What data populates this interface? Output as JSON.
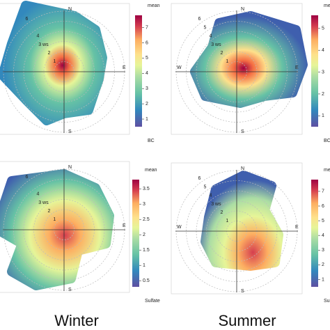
{
  "panels": [
    {
      "compass": {
        "N": "N",
        "E": "E",
        "S": "S"
      },
      "rings": [
        "1",
        "2",
        "3 ws",
        "4",
        "6"
      ],
      "colorbar": {
        "title": "mean",
        "label": "BC",
        "ylim": [
          0.5,
          7.8
        ],
        "yticks": [
          1,
          2,
          3,
          4,
          5,
          6,
          7
        ]
      }
    },
    {
      "compass": {
        "N": "N",
        "E": "E",
        "S": "S",
        "W": "W"
      },
      "rings": [
        "1",
        "2",
        "3 ws",
        "4",
        "5",
        "6"
      ],
      "colorbar": {
        "title": "mean",
        "label": "BC",
        "ylim": [
          0.5,
          5.6
        ],
        "yticks": [
          1,
          2,
          3,
          4,
          5
        ]
      }
    },
    {
      "compass": {
        "N": "N",
        "E": "E",
        "S": "S"
      },
      "rings": [
        "1",
        "2",
        "3 ws",
        "4",
        "6"
      ],
      "colorbar": {
        "title": "mean",
        "label": "Sulfate",
        "ylim": [
          0.3,
          3.8
        ],
        "yticks": [
          0.5,
          1,
          1.5,
          2,
          2.5,
          3,
          3.5
        ]
      }
    },
    {
      "compass": {
        "N": "N",
        "E": "E",
        "S": "S",
        "W": "W"
      },
      "rings": [
        "1",
        "2",
        "3 ws",
        "4",
        "5",
        "6"
      ],
      "colorbar": {
        "title": "mean",
        "label": "Sulfate",
        "ylim": [
          0.5,
          7.8
        ],
        "yticks": [
          1,
          2,
          3,
          4,
          5,
          6,
          7
        ]
      }
    }
  ],
  "captions": [
    "Winter",
    "Summer"
  ]
}
